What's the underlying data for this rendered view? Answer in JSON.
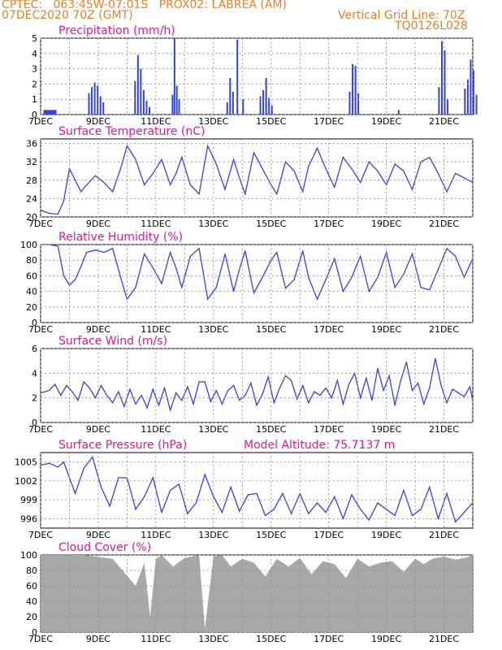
{
  "header": {
    "left1": "CPTEC:   063:45W-07:01S   PROX02: LABREA (AM)",
    "left2": "07DEC2020 70Z (GMT)",
    "right1": "Vertical Grid Line: 70Z",
    "right2": "TQ0126L028"
  },
  "colors": {
    "header": "#e8812a",
    "title": "#e0189a",
    "line": "#3344dd",
    "cloud": "#a8a8a8",
    "grid": "#888888"
  },
  "x_ticks": [
    "7DEC",
    "9DEC",
    "11DEC",
    "13DEC",
    "15DEC",
    "17DEC",
    "19DEC",
    "21DEC"
  ],
  "chart_data": [
    {
      "id": "precip",
      "type": "bar",
      "title": "Precipitation (mm/h)",
      "ylim": [
        0,
        5
      ],
      "yticks": [
        0,
        1,
        2,
        3,
        4,
        5
      ],
      "events": [
        {
          "day": 0.1,
          "w": 0.45,
          "v": 0.3
        },
        {
          "day": 1.65,
          "w": 0.05,
          "v": 1.4
        },
        {
          "day": 1.75,
          "w": 0.05,
          "v": 1.8
        },
        {
          "day": 1.85,
          "w": 0.05,
          "v": 2.1
        },
        {
          "day": 1.95,
          "w": 0.05,
          "v": 1.9
        },
        {
          "day": 2.05,
          "w": 0.05,
          "v": 1.2
        },
        {
          "day": 2.15,
          "w": 0.05,
          "v": 0.8
        },
        {
          "day": 3.25,
          "w": 0.05,
          "v": 2.2
        },
        {
          "day": 3.35,
          "w": 0.05,
          "v": 3.9
        },
        {
          "day": 3.45,
          "w": 0.05,
          "v": 3.0
        },
        {
          "day": 3.55,
          "w": 0.05,
          "v": 1.6
        },
        {
          "day": 3.65,
          "w": 0.05,
          "v": 0.9
        },
        {
          "day": 3.75,
          "w": 0.05,
          "v": 0.5
        },
        {
          "day": 4.55,
          "w": 0.05,
          "v": 1.3
        },
        {
          "day": 4.62,
          "w": 0.05,
          "v": 5.0
        },
        {
          "day": 4.7,
          "w": 0.05,
          "v": 1.9
        },
        {
          "day": 4.78,
          "w": 0.05,
          "v": 1.0
        },
        {
          "day": 6.45,
          "w": 0.05,
          "v": 0.8
        },
        {
          "day": 6.55,
          "w": 0.05,
          "v": 2.4
        },
        {
          "day": 6.65,
          "w": 0.05,
          "v": 1.5
        },
        {
          "day": 6.8,
          "w": 0.05,
          "v": 4.9
        },
        {
          "day": 7.0,
          "w": 0.05,
          "v": 1.0
        },
        {
          "day": 7.6,
          "w": 0.05,
          "v": 1.2
        },
        {
          "day": 7.7,
          "w": 0.05,
          "v": 1.6
        },
        {
          "day": 7.8,
          "w": 0.05,
          "v": 2.4
        },
        {
          "day": 7.9,
          "w": 0.05,
          "v": 1.1
        },
        {
          "day": 8.0,
          "w": 0.05,
          "v": 0.6
        },
        {
          "day": 10.7,
          "w": 0.05,
          "v": 1.5
        },
        {
          "day": 10.8,
          "w": 0.05,
          "v": 3.3
        },
        {
          "day": 10.9,
          "w": 0.05,
          "v": 3.2
        },
        {
          "day": 11.0,
          "w": 0.05,
          "v": 1.4
        },
        {
          "day": 12.4,
          "w": 0.05,
          "v": 0.3
        },
        {
          "day": 13.8,
          "w": 0.05,
          "v": 1.8
        },
        {
          "day": 13.9,
          "w": 0.05,
          "v": 4.8
        },
        {
          "day": 14.0,
          "w": 0.05,
          "v": 4.2
        },
        {
          "day": 14.1,
          "w": 0.05,
          "v": 1.0
        },
        {
          "day": 14.7,
          "w": 0.05,
          "v": 1.7
        },
        {
          "day": 14.8,
          "w": 0.05,
          "v": 2.3
        },
        {
          "day": 14.9,
          "w": 0.05,
          "v": 3.6
        },
        {
          "day": 15.0,
          "w": 0.05,
          "v": 2.9
        },
        {
          "day": 15.1,
          "w": 0.05,
          "v": 1.3
        }
      ]
    },
    {
      "id": "temp",
      "type": "line",
      "title": "Surface Temperature (nC)",
      "ylim": [
        20,
        37
      ],
      "yticks": [
        20,
        24,
        28,
        32,
        36
      ],
      "x": [
        0,
        0.3,
        0.6,
        0.8,
        1.0,
        1.2,
        1.4,
        1.6,
        1.9,
        2.2,
        2.5,
        2.8,
        3.0,
        3.3,
        3.6,
        3.9,
        4.2,
        4.5,
        4.7,
        4.9,
        5.2,
        5.5,
        5.8,
        6.1,
        6.4,
        6.7,
        6.9,
        7.1,
        7.4,
        7.7,
        8.0,
        8.2,
        8.5,
        8.8,
        9.1,
        9.3,
        9.6,
        9.9,
        10.2,
        10.5,
        10.8,
        11.1,
        11.4,
        11.7,
        12.0,
        12.3,
        12.6,
        12.9,
        13.2,
        13.5,
        13.8,
        14.1,
        14.4,
        14.7,
        15.0
      ],
      "values": [
        21.5,
        20.8,
        20.6,
        23.5,
        30.5,
        28.0,
        25.5,
        27.0,
        29.0,
        27.5,
        25.5,
        31.0,
        35.5,
        32.5,
        27.0,
        29.5,
        32.5,
        27.0,
        29.5,
        33.0,
        27.0,
        25.0,
        35.5,
        31.5,
        26.0,
        32.5,
        28.5,
        25.0,
        34.0,
        30.5,
        27.0,
        25.0,
        32.0,
        30.0,
        25.5,
        31.0,
        35.0,
        30.5,
        26.5,
        33.0,
        30.5,
        27.5,
        32.0,
        30.0,
        27.0,
        31.5,
        30.0,
        26.0,
        32.0,
        33.0,
        29.5,
        25.5,
        29.5,
        28.5,
        27.5
      ]
    },
    {
      "id": "rh",
      "type": "line",
      "title": "Relative Humidity (%)",
      "ylim": [
        0,
        100
      ],
      "yticks": [
        0,
        20,
        40,
        60,
        80,
        100
      ],
      "x": [
        0,
        0.3,
        0.6,
        0.8,
        1.0,
        1.2,
        1.4,
        1.6,
        1.9,
        2.2,
        2.5,
        2.8,
        3.0,
        3.3,
        3.6,
        3.9,
        4.2,
        4.5,
        4.7,
        4.9,
        5.2,
        5.5,
        5.8,
        6.1,
        6.4,
        6.7,
        6.9,
        7.1,
        7.4,
        7.7,
        8.0,
        8.2,
        8.5,
        8.8,
        9.1,
        9.3,
        9.6,
        9.9,
        10.2,
        10.5,
        10.8,
        11.1,
        11.4,
        11.7,
        12.0,
        12.3,
        12.6,
        12.9,
        13.2,
        13.5,
        13.8,
        14.1,
        14.4,
        14.7,
        15.0
      ],
      "values": [
        100,
        100,
        98,
        60,
        48,
        55,
        72,
        90,
        93,
        90,
        95,
        55,
        30,
        45,
        88,
        70,
        50,
        90,
        70,
        45,
        85,
        95,
        30,
        45,
        88,
        40,
        68,
        92,
        38,
        58,
        80,
        90,
        44,
        55,
        92,
        58,
        30,
        55,
        82,
        40,
        58,
        85,
        40,
        58,
        90,
        45,
        62,
        88,
        45,
        42,
        68,
        95,
        85,
        58,
        82
      ]
    },
    {
      "id": "wind",
      "type": "line",
      "title": "Surface Wind (m/s)",
      "ylim": [
        0,
        6
      ],
      "yticks": [
        0,
        2,
        4,
        6
      ],
      "x": [
        0,
        0.3,
        0.5,
        0.7,
        0.9,
        1.1,
        1.3,
        1.5,
        1.7,
        1.9,
        2.1,
        2.3,
        2.5,
        2.7,
        2.9,
        3.1,
        3.3,
        3.5,
        3.7,
        3.9,
        4.1,
        4.3,
        4.5,
        4.7,
        4.9,
        5.1,
        5.3,
        5.5,
        5.7,
        5.9,
        6.1,
        6.3,
        6.5,
        6.7,
        6.9,
        7.1,
        7.3,
        7.5,
        7.7,
        7.9,
        8.1,
        8.3,
        8.5,
        8.7,
        8.9,
        9.1,
        9.3,
        9.5,
        9.7,
        9.9,
        10.1,
        10.3,
        10.5,
        10.7,
        10.9,
        11.1,
        11.3,
        11.5,
        11.7,
        11.9,
        12.1,
        12.3,
        12.5,
        12.7,
        12.9,
        13.1,
        13.3,
        13.5,
        13.7,
        13.9,
        14.1,
        14.3,
        14.5,
        14.7,
        14.9,
        15.0
      ],
      "values": [
        2.4,
        2.6,
        3.1,
        2.2,
        3.0,
        2.5,
        1.8,
        3.3,
        2.8,
        2.0,
        3.0,
        2.2,
        1.6,
        2.5,
        1.3,
        2.7,
        1.5,
        2.2,
        1.2,
        2.7,
        1.4,
        2.8,
        1.0,
        2.4,
        1.8,
        2.9,
        1.5,
        3.3,
        3.3,
        1.7,
        2.6,
        1.5,
        2.6,
        3.0,
        1.8,
        2.2,
        3.2,
        1.4,
        2.3,
        3.7,
        1.6,
        2.8,
        3.8,
        3.4,
        1.9,
        3.0,
        1.6,
        2.5,
        2.2,
        2.8,
        2.0,
        3.4,
        1.5,
        3.1,
        4.0,
        2.0,
        3.6,
        1.8,
        4.4,
        2.6,
        3.8,
        1.4,
        3.4,
        4.9,
        2.6,
        3.2,
        1.5,
        2.8,
        5.2,
        3.0,
        1.6,
        2.7,
        2.4,
        2.1,
        2.9,
        1.8
      ]
    },
    {
      "id": "pressure",
      "type": "line",
      "title": "Surface Pressure (hPa)",
      "annotation": "Model Altitude: 75.7137 m",
      "ylim": [
        994.5,
        1006.5
      ],
      "yticks": [
        996,
        999,
        1002,
        1005
      ],
      "x": [
        0,
        0.3,
        0.6,
        0.8,
        1.0,
        1.2,
        1.5,
        1.8,
        2.1,
        2.4,
        2.7,
        3.0,
        3.3,
        3.6,
        3.9,
        4.2,
        4.5,
        4.8,
        5.1,
        5.4,
        5.7,
        6.0,
        6.3,
        6.6,
        6.9,
        7.2,
        7.5,
        7.8,
        8.1,
        8.4,
        8.7,
        9.0,
        9.3,
        9.6,
        9.9,
        10.2,
        10.5,
        10.8,
        11.1,
        11.4,
        11.7,
        12.0,
        12.3,
        12.6,
        12.9,
        13.2,
        13.5,
        13.8,
        14.1,
        14.4,
        14.7,
        15.0
      ],
      "values": [
        1004.5,
        1004.8,
        1004.2,
        1005.0,
        1002.5,
        1000.0,
        1004.0,
        1005.8,
        1001.0,
        998.0,
        1002.5,
        1002.5,
        997.5,
        999.5,
        1002.5,
        997.0,
        1000.5,
        1001.5,
        996.8,
        998.5,
        1003.0,
        999.5,
        997.0,
        1001.0,
        997.2,
        999.8,
        1000.0,
        996.5,
        997.5,
        1000.0,
        996.8,
        1000.0,
        996.8,
        998.5,
        997.0,
        999.5,
        996.0,
        999.8,
        997.5,
        995.8,
        998.5,
        997.5,
        996.5,
        1000.5,
        996.5,
        997.5,
        1001.0,
        996.0,
        1000.0,
        995.5,
        997.0,
        998.5
      ]
    },
    {
      "id": "cloud",
      "type": "area",
      "title": "Cloud Cover (%)",
      "ylim": [
        0,
        100
      ],
      "yticks": [
        0,
        20,
        40,
        60,
        80,
        100
      ],
      "x": [
        0,
        1.5,
        2.5,
        3.3,
        3.6,
        3.8,
        4.0,
        4.2,
        4.6,
        5.0,
        5.5,
        5.7,
        6.0,
        6.3,
        6.6,
        7.0,
        7.4,
        7.8,
        8.2,
        8.6,
        9.0,
        9.4,
        9.8,
        10.2,
        10.6,
        11.0,
        11.4,
        11.8,
        12.2,
        12.6,
        13.0,
        13.3,
        13.6,
        14.0,
        14.4,
        14.8,
        15.0
      ],
      "values": [
        100,
        100,
        95,
        60,
        90,
        20,
        95,
        100,
        85,
        96,
        100,
        5,
        98,
        100,
        85,
        95,
        90,
        72,
        95,
        85,
        96,
        75,
        92,
        88,
        70,
        95,
        85,
        90,
        92,
        78,
        95,
        88,
        95,
        98,
        94,
        97,
        100
      ]
    }
  ]
}
